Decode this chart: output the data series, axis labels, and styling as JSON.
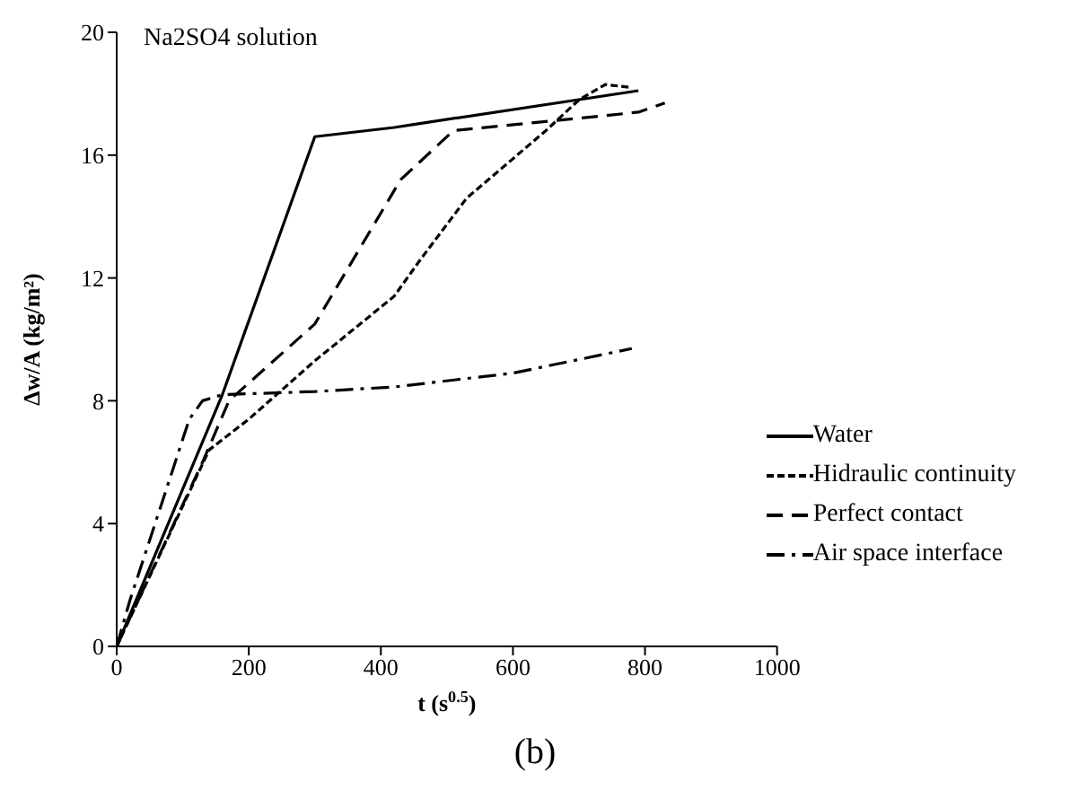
{
  "chart_data": {
    "type": "line",
    "title": "Na2SO4 solution",
    "xlabel": "t (s$^{0.5}$)",
    "ylabel": "Δw/A (kg/m²)",
    "annotations": [
      "(b)"
    ],
    "xlim": [
      0,
      1000
    ],
    "xticks": [
      0,
      200,
      400,
      600,
      800,
      1000
    ],
    "ylim": [
      0,
      20
    ],
    "yticks": [
      0,
      4,
      8,
      12,
      16,
      20
    ],
    "grid": false,
    "legend": "bottom right",
    "marker": "none",
    "series": [
      {
        "name": "Water",
        "color": "#000000",
        "line_style": "solid",
        "x": [
          0,
          160,
          300,
          420,
          450,
          790
        ],
        "values": [
          0,
          8.2,
          16.6,
          16.9,
          17.0,
          18.1
        ]
      },
      {
        "name": "Hidraulic continuity",
        "color": "#000000",
        "line_style": "dotted",
        "x": [
          0,
          140,
          200,
          300,
          420,
          460,
          530,
          650,
          700,
          740,
          780
        ],
        "values": [
          0,
          6.4,
          7.4,
          9.3,
          11.4,
          12.6,
          14.6,
          16.8,
          17.8,
          18.3,
          18.2
        ]
      },
      {
        "name": "Perfect contact",
        "color": "#000000",
        "line_style": "dashed",
        "x": [
          0,
          130,
          170,
          300,
          430,
          510,
          700,
          790,
          830
        ],
        "values": [
          0,
          6.0,
          8.0,
          10.5,
          15.2,
          16.8,
          17.2,
          17.4,
          17.7
        ]
      },
      {
        "name": "Air space interface",
        "color": "#000000",
        "line_style": "dashdot",
        "x": [
          0,
          20,
          110,
          130,
          160,
          300,
          420,
          600,
          780
        ],
        "values": [
          0,
          1.5,
          7.4,
          8.0,
          8.2,
          8.3,
          8.45,
          8.9,
          9.7
        ]
      }
    ]
  }
}
